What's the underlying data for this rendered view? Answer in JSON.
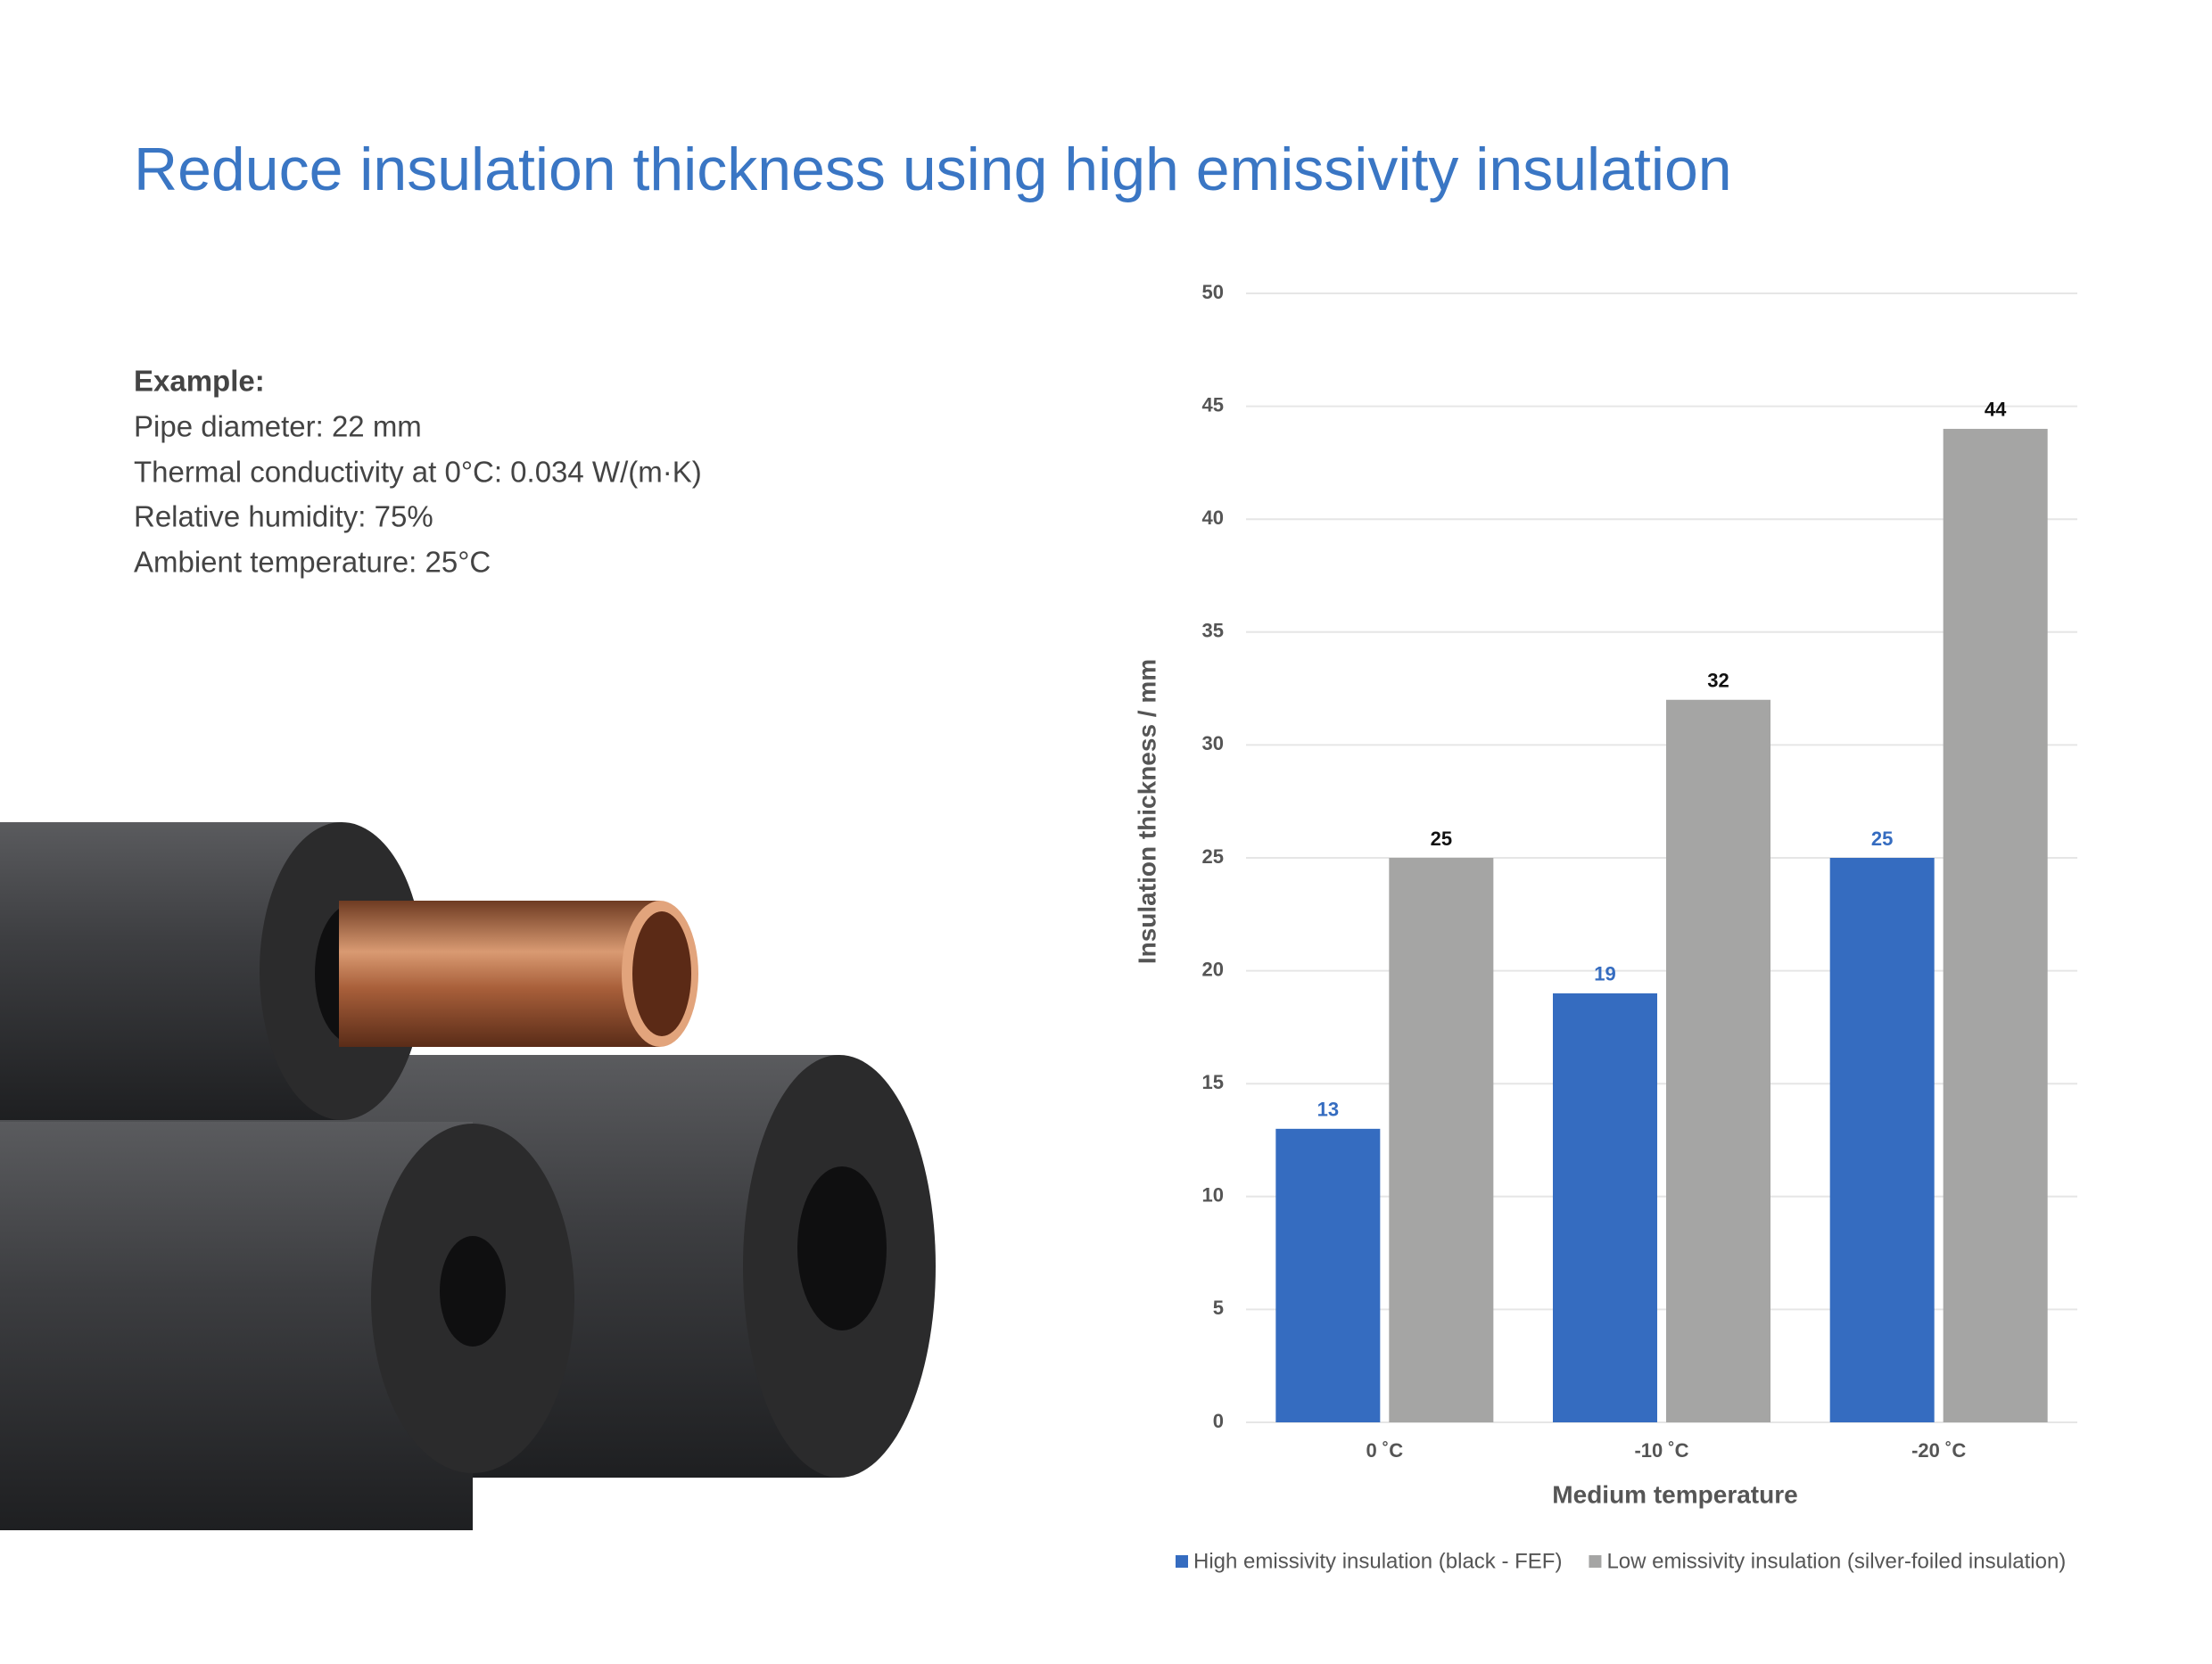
{
  "title": "Reduce insulation thickness using high emissivity insulation",
  "example": {
    "heading": "Example:",
    "lines": [
      "Pipe diameter: 22 mm",
      "Thermal conductivity at 0°C: 0.034 W/(m·K)",
      "Relative humidity: 75%",
      "Ambient temperature: 25°C"
    ]
  },
  "chart_data": {
    "type": "bar",
    "x_label": "Medium temperature",
    "y_label": "Insulation thickness / mm",
    "categories": [
      "0 ˚C",
      "-10 ˚C",
      "-20 ˚C"
    ],
    "series": [
      {
        "name": "High emissivity insulation (black - FEF)",
        "color": "#356cc0",
        "label_color": "#356cc0",
        "values": [
          13,
          19,
          25
        ]
      },
      {
        "name": "Low emissivity insulation (silver-foiled insulation)",
        "color": "#a5a5a4",
        "label_color": "#111111",
        "values": [
          25,
          32,
          44
        ]
      }
    ],
    "ylim": [
      0,
      50
    ],
    "yticks": [
      0,
      5,
      10,
      15,
      20,
      25,
      30,
      35,
      40,
      45,
      50
    ],
    "grid": true,
    "legend": "bottom"
  }
}
